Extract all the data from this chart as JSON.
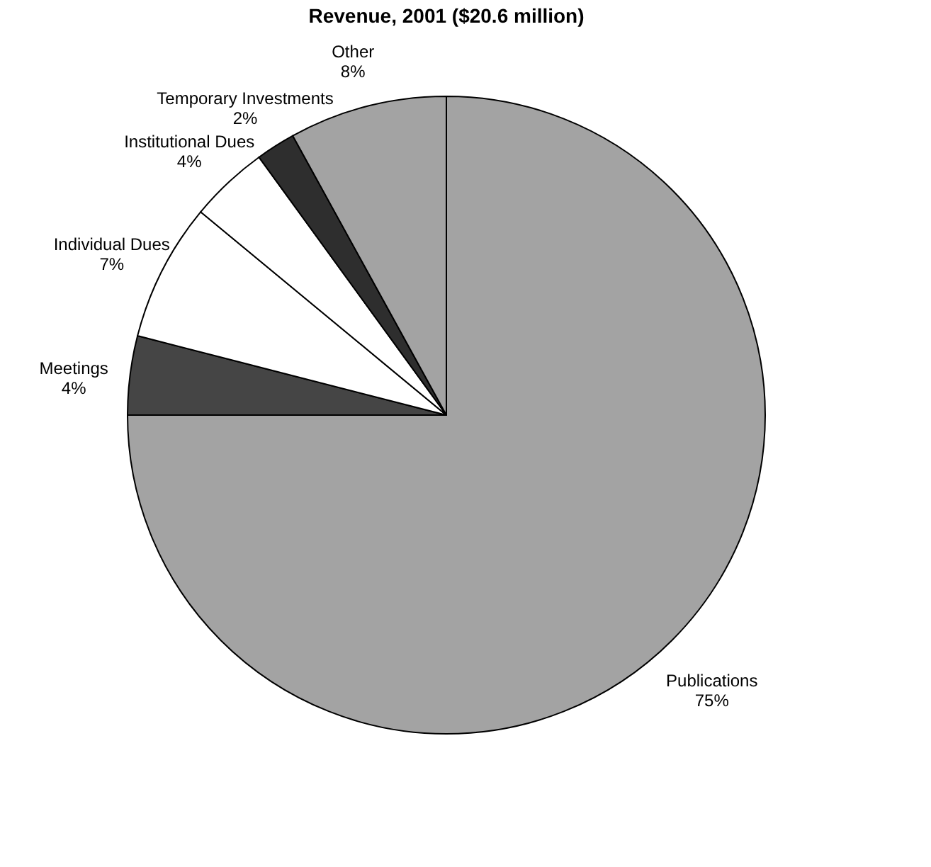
{
  "chart_data": {
    "type": "pie",
    "title": "Revenue, 2001 ($20.6 million)",
    "categories": [
      "Publications",
      "Meetings",
      "Individual Dues",
      "Institutional Dues",
      "Temporary Investments",
      "Other"
    ],
    "values": [
      75,
      4,
      7,
      4,
      2,
      8
    ],
    "value_labels": [
      "75%",
      "4%",
      "7%",
      "4%",
      "2%",
      "8%"
    ],
    "colors": [
      "#a3a3a3",
      "#454545",
      "#ffffff",
      "#ffffff",
      "#2e2e2e",
      "#a3a3a3"
    ],
    "legend": false
  }
}
